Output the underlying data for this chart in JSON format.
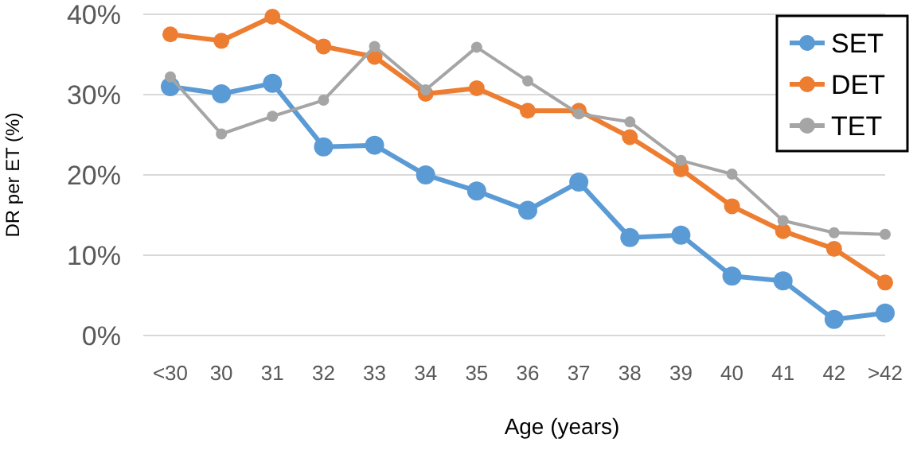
{
  "chart_data": {
    "type": "line",
    "xlabel": "Age (years)",
    "ylabel": "DR per ET (%)",
    "categories": [
      "<30",
      "30",
      "31",
      "32",
      "33",
      "34",
      "35",
      "36",
      "37",
      "38",
      "39",
      "40",
      "41",
      "42",
      ">42"
    ],
    "series": [
      {
        "name": "SET",
        "color": "#5b9bd5",
        "values": [
          31.0,
          30.1,
          31.4,
          23.5,
          23.7,
          20.0,
          18.0,
          15.6,
          19.1,
          12.2,
          12.5,
          7.4,
          6.8,
          2.0,
          2.8
        ]
      },
      {
        "name": "DET",
        "color": "#ed7d31",
        "values": [
          37.5,
          36.7,
          39.7,
          36.0,
          34.7,
          30.1,
          30.8,
          28.0,
          28.0,
          24.7,
          20.7,
          16.1,
          13.0,
          10.8,
          6.6
        ]
      },
      {
        "name": "TET",
        "color": "#a5a5a5",
        "values": [
          32.2,
          25.1,
          27.3,
          29.3,
          36.0,
          30.6,
          35.9,
          31.7,
          27.6,
          26.6,
          21.8,
          20.1,
          14.3,
          12.8,
          12.6
        ]
      }
    ],
    "ylim": [
      0,
      40
    ],
    "yticks": [
      {
        "value": 0,
        "label": "0%"
      },
      {
        "value": 10,
        "label": "10%"
      },
      {
        "value": 20,
        "label": "20%"
      },
      {
        "value": 30,
        "label": "30%"
      },
      {
        "value": 40,
        "label": "40%"
      }
    ],
    "grid": "y",
    "legend": "top right",
    "marker": "circle",
    "line_style": "solid"
  }
}
